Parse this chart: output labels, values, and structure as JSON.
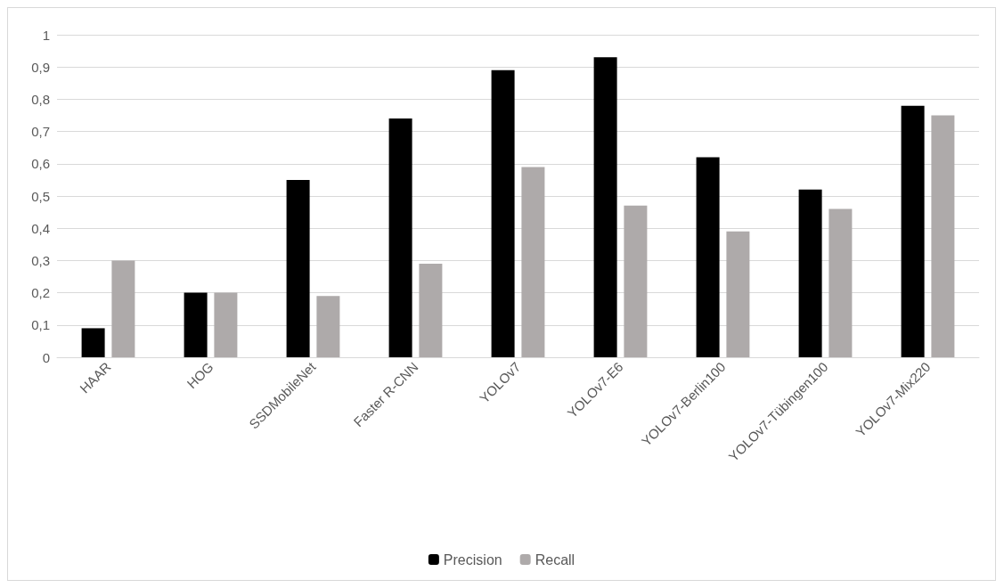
{
  "chart_data": {
    "type": "bar",
    "categories": [
      "HAAR",
      "HOG",
      "SSDMobileNet",
      "Faster R-CNN",
      "YOLOv7",
      "YOLOv7-E6",
      "YOLOv7-Berlin100",
      "YOLOv7-Tübingen100",
      "YOLOv7-Mix220"
    ],
    "series": [
      {
        "name": "Precision",
        "color": "#000000",
        "values": [
          0.09,
          0.2,
          0.55,
          0.74,
          0.89,
          0.93,
          0.62,
          0.52,
          0.78
        ]
      },
      {
        "name": "Recall",
        "color": "#aeaaaa",
        "values": [
          0.3,
          0.2,
          0.19,
          0.29,
          0.59,
          0.47,
          0.39,
          0.46,
          0.75
        ]
      }
    ],
    "ylim": [
      0,
      1
    ],
    "yticks": [
      0,
      {
        "value": 0.1,
        "label": "0,1"
      },
      {
        "value": 0.2,
        "label": "0,2"
      },
      {
        "value": 0.3,
        "label": "0,3"
      },
      {
        "value": 0.4,
        "label": "0,4"
      },
      {
        "value": 0.5,
        "label": "0,5"
      },
      {
        "value": 0.6,
        "label": "0,6"
      },
      {
        "value": 0.7,
        "label": "0,7"
      },
      {
        "value": 0.8,
        "label": "0,8"
      },
      {
        "value": 0.9,
        "label": "0,9"
      },
      1
    ],
    "grid": "y",
    "legend": "bottom"
  }
}
